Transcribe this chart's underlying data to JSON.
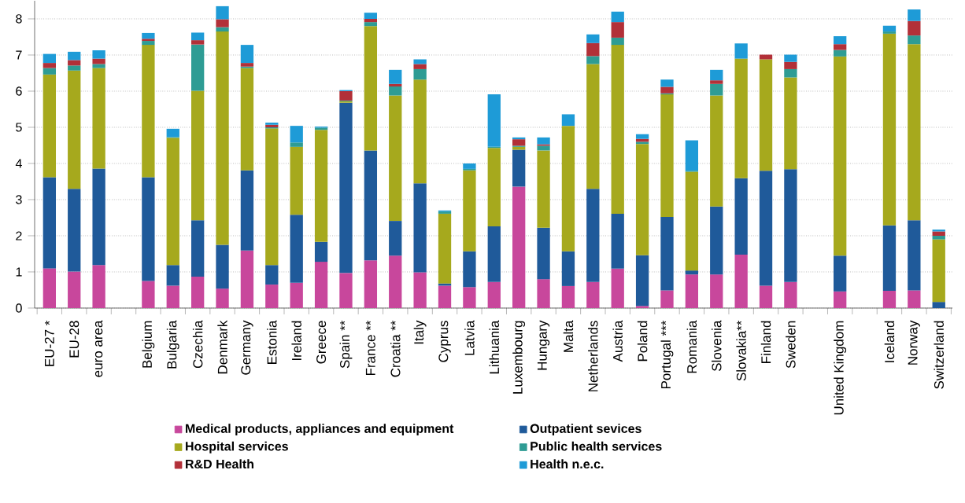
{
  "chart_data": {
    "type": "bar",
    "stacked": true,
    "categories": [
      "EU-27 *",
      "EU-28",
      "euro area",
      null,
      "Belgium",
      "Bulgaria",
      "Czechia",
      "Denmark",
      "Germany",
      "Estonia",
      "Ireland",
      "Greece",
      "Spain **",
      "France **",
      "Croatia **",
      "Italy",
      "Cyprus",
      "Latvia",
      "Lithuania",
      "Luxembourg",
      "Hungary",
      "Malta",
      "Netherlands",
      "Austria",
      "Poland",
      "Portugal ***",
      "Romania",
      "Slovenia",
      "Slovakia**",
      "Finland",
      "Sweden",
      null,
      "United Kingdom",
      null,
      "Iceland",
      "Norway",
      "Switzerland"
    ],
    "series": [
      {
        "name": "Medical products, appliances and equipment",
        "color": "#c8479c",
        "values": [
          1.1,
          1.01,
          1.19,
          null,
          0.75,
          0.62,
          0.87,
          0.54,
          1.59,
          0.65,
          0.7,
          1.28,
          0.97,
          1.32,
          1.45,
          0.99,
          0.62,
          0.58,
          0.72,
          3.36,
          0.8,
          0.61,
          0.72,
          1.09,
          0.06,
          0.49,
          0.93,
          0.93,
          1.48,
          0.62,
          0.72,
          null,
          0.46,
          null,
          0.48,
          0.49,
          null
        ]
      },
      {
        "name": "Outpatient sevices",
        "color": "#1f5a9a",
        "values": [
          2.52,
          2.29,
          2.67,
          null,
          2.87,
          0.57,
          1.56,
          1.21,
          2.22,
          0.54,
          1.88,
          0.55,
          4.71,
          3.04,
          0.96,
          2.46,
          0.06,
          0.99,
          1.54,
          1.02,
          1.42,
          0.96,
          2.58,
          1.52,
          1.4,
          2.03,
          0.11,
          1.88,
          2.11,
          3.18,
          3.12,
          null,
          0.99,
          null,
          1.81,
          1.94,
          0.17
        ]
      },
      {
        "name": "Hospital services",
        "color": "#a6a91d",
        "values": [
          2.84,
          3.27,
          2.78,
          null,
          3.66,
          3.52,
          3.58,
          5.9,
          2.83,
          3.78,
          1.88,
          3.1,
          0.04,
          3.44,
          3.47,
          2.87,
          1.93,
          2.24,
          2.17,
          0.08,
          2.14,
          3.47,
          3.45,
          4.67,
          3.08,
          3.39,
          2.73,
          3.07,
          3.31,
          3.08,
          2.54,
          null,
          5.51,
          null,
          5.3,
          4.87,
          1.73
        ]
      },
      {
        "name": "Public health services",
        "color": "#2e9c94",
        "values": [
          0.18,
          0.14,
          0.11,
          null,
          0.11,
          0.02,
          1.28,
          0.12,
          0.04,
          0.03,
          0.12,
          0.06,
          0.02,
          0.11,
          0.25,
          0.29,
          0.06,
          0.04,
          0.03,
          0.03,
          0.13,
          null,
          0.22,
          0.2,
          0.06,
          0.03,
          0.03,
          0.32,
          null,
          null,
          0.23,
          null,
          0.18,
          null,
          0.06,
          0.24,
          0.1
        ]
      },
      {
        "name": "R&D Health",
        "color": "#b23038",
        "values": [
          0.14,
          0.15,
          0.15,
          null,
          0.06,
          null,
          0.12,
          0.22,
          0.1,
          0.07,
          null,
          null,
          0.26,
          0.09,
          0.07,
          0.14,
          null,
          null,
          null,
          0.18,
          0.04,
          null,
          0.36,
          0.43,
          0.08,
          0.18,
          null,
          0.1,
          null,
          0.13,
          0.2,
          null,
          0.16,
          null,
          null,
          0.4,
          0.12
        ]
      },
      {
        "name": "Health n.e.c.",
        "color": "#1e9bd7",
        "values": [
          0.25,
          0.23,
          0.23,
          null,
          0.16,
          0.23,
          0.21,
          0.36,
          0.5,
          0.06,
          0.46,
          0.03,
          0.03,
          0.17,
          0.39,
          0.13,
          0.03,
          0.15,
          1.45,
          0.05,
          0.19,
          0.32,
          0.24,
          0.29,
          0.13,
          0.2,
          0.84,
          0.29,
          0.42,
          null,
          0.2,
          null,
          0.22,
          null,
          0.16,
          0.32,
          0.05
        ]
      }
    ],
    "ylim": [
      0,
      8.5
    ],
    "yticks": [
      0,
      1,
      2,
      3,
      4,
      5,
      6,
      7,
      8
    ],
    "grid": "y",
    "legend": "bottom"
  }
}
